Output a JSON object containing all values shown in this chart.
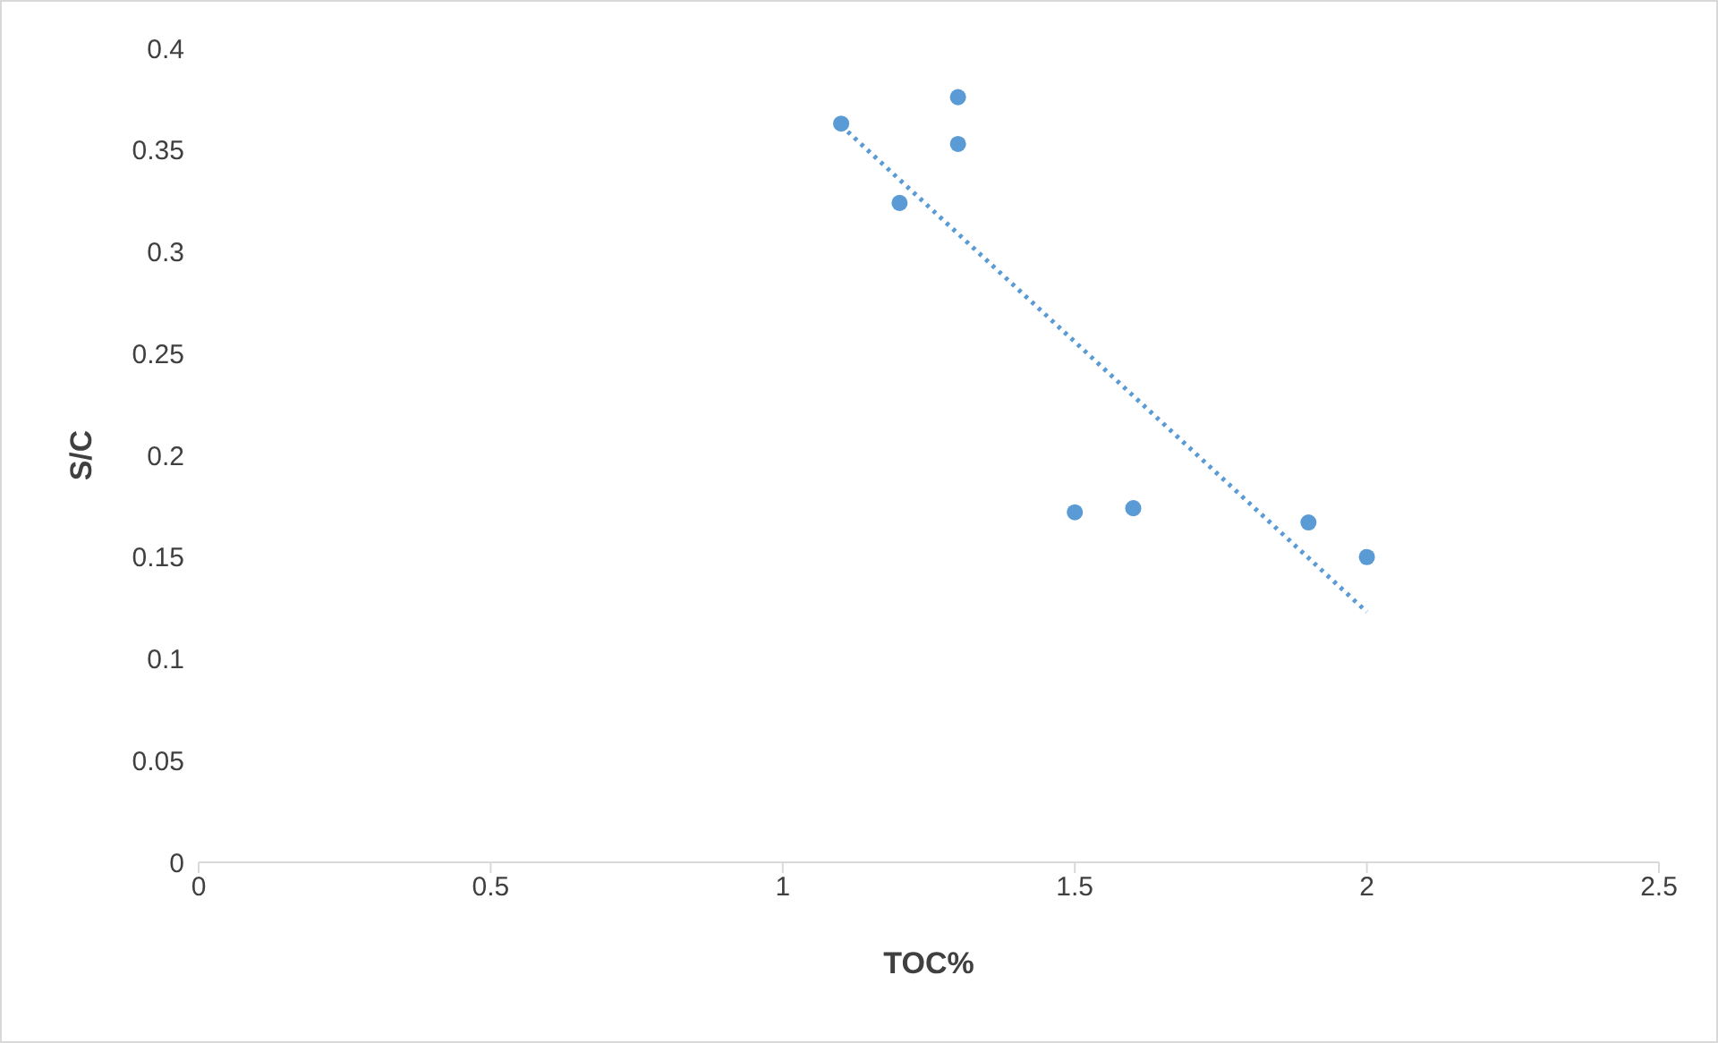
{
  "chart_data": {
    "type": "scatter",
    "xlabel": "TOC%",
    "ylabel": "S/C",
    "xlim": [
      0,
      2.5
    ],
    "xticks": [
      0,
      0.5,
      1,
      1.5,
      2,
      2.5
    ],
    "ylim": [
      0,
      0.4
    ],
    "yticks": [
      0,
      0.05,
      0.1,
      0.15,
      0.2,
      0.25,
      0.3,
      0.35,
      0.4
    ],
    "grid": false,
    "legend": false,
    "marker": "circle",
    "series": [
      {
        "color": "#5b9bd5",
        "x": [
          1.1,
          1.3,
          1.3,
          1.2,
          1.5,
          1.6,
          1.9,
          2.0
        ],
        "values": [
          0.363,
          0.376,
          0.353,
          0.324,
          0.172,
          0.174,
          0.167,
          0.15
        ]
      },
      {
        "type": "line",
        "color": "#5b9bd5",
        "line_style": "dotted",
        "marker": "none",
        "x": [
          1.1,
          2.0
        ],
        "values": [
          0.362,
          0.123
        ]
      }
    ]
  }
}
